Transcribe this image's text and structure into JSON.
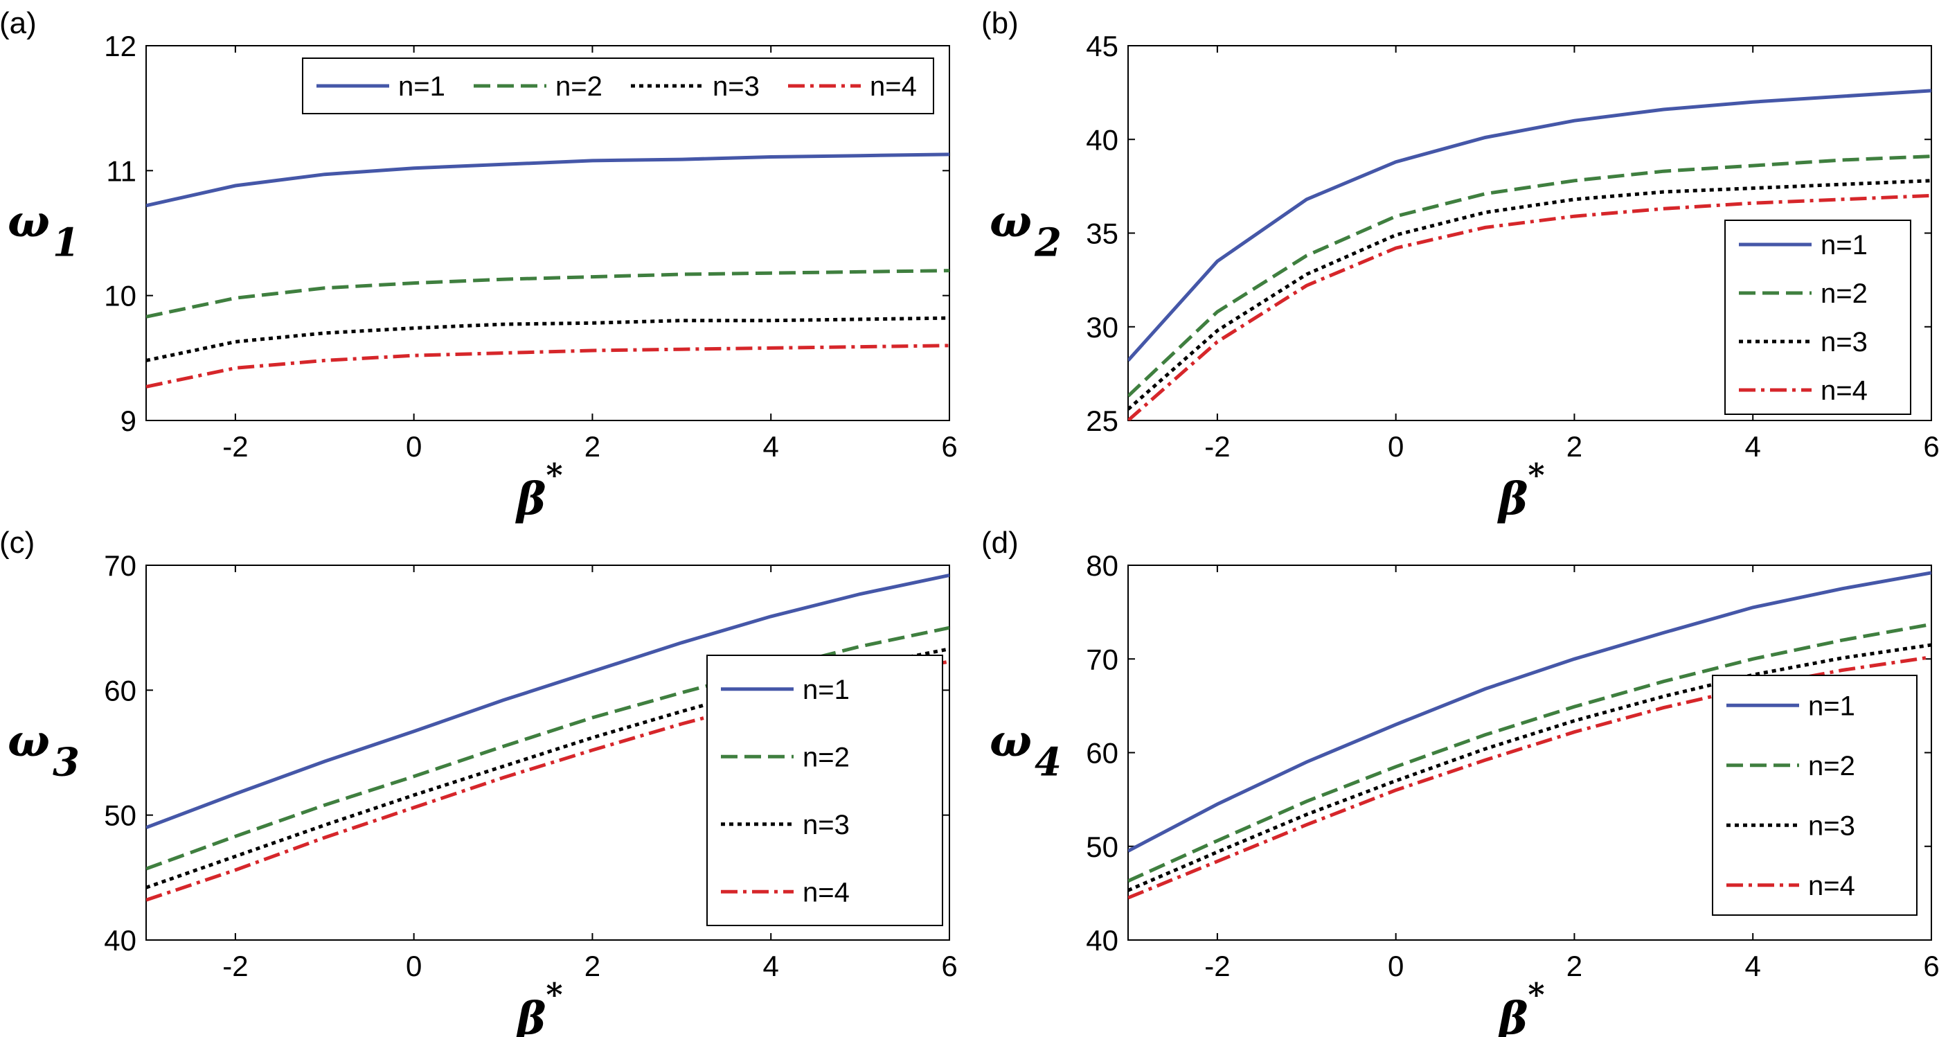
{
  "chart_data": [
    {
      "type": "line",
      "panel_label": "(a)",
      "xlabel": "β",
      "xlabel_sup": "*",
      "ylabel": "ω",
      "ylabel_sub": "1",
      "xlim": [
        -3,
        6
      ],
      "ylim": [
        9,
        12
      ],
      "xticks": [
        -2,
        0,
        2,
        4,
        6
      ],
      "yticks": [
        9,
        10,
        11,
        12
      ],
      "legend": "top-right-horizontal",
      "grid": false,
      "x": [
        -3,
        -2,
        -1,
        0,
        1,
        2,
        3,
        4,
        5,
        6
      ],
      "series": [
        {
          "name": "n=1",
          "values": [
            10.72,
            10.88,
            10.97,
            11.02,
            11.05,
            11.08,
            11.09,
            11.11,
            11.12,
            11.13
          ]
        },
        {
          "name": "n=2",
          "values": [
            9.83,
            9.98,
            10.06,
            10.1,
            10.13,
            10.15,
            10.17,
            10.18,
            10.19,
            10.2
          ]
        },
        {
          "name": "n=3",
          "values": [
            9.48,
            9.63,
            9.7,
            9.74,
            9.77,
            9.78,
            9.8,
            9.8,
            9.81,
            9.82
          ]
        },
        {
          "name": "n=4",
          "values": [
            9.27,
            9.42,
            9.48,
            9.52,
            9.54,
            9.56,
            9.57,
            9.58,
            9.59,
            9.6
          ]
        }
      ]
    },
    {
      "type": "line",
      "panel_label": "(b)",
      "xlabel": "β",
      "xlabel_sup": "*",
      "ylabel": "ω",
      "ylabel_sub": "2",
      "xlim": [
        -3,
        6
      ],
      "ylim": [
        25,
        45
      ],
      "xticks": [
        -2,
        0,
        2,
        4,
        6
      ],
      "yticks": [
        25,
        30,
        35,
        40,
        45
      ],
      "legend": "bottom-right",
      "grid": false,
      "x": [
        -3,
        -2,
        -1,
        0,
        1,
        2,
        3,
        4,
        5,
        6
      ],
      "series": [
        {
          "name": "n=1",
          "values": [
            28.2,
            33.5,
            36.8,
            38.8,
            40.1,
            41,
            41.6,
            42,
            42.3,
            42.6
          ]
        },
        {
          "name": "n=2",
          "values": [
            26.3,
            30.8,
            33.8,
            35.9,
            37.1,
            37.8,
            38.3,
            38.6,
            38.9,
            39.1
          ]
        },
        {
          "name": "n=3",
          "values": [
            25.6,
            29.8,
            32.8,
            34.9,
            36.1,
            36.8,
            37.2,
            37.4,
            37.6,
            37.8
          ]
        },
        {
          "name": "n=4",
          "values": [
            25,
            29.2,
            32.2,
            34.2,
            35.3,
            35.9,
            36.3,
            36.6,
            36.8,
            37
          ]
        }
      ]
    },
    {
      "type": "line",
      "panel_label": "(c)",
      "xlabel": "β",
      "xlabel_sup": "*",
      "ylabel": "ω",
      "ylabel_sub": "3",
      "xlim": [
        -3,
        6
      ],
      "ylim": [
        40,
        70
      ],
      "xticks": [
        -2,
        0,
        2,
        4,
        6
      ],
      "yticks": [
        40,
        50,
        60,
        70
      ],
      "legend": "bottom-right",
      "grid": false,
      "x": [
        -3,
        -2,
        -1,
        0,
        1,
        2,
        3,
        4,
        5,
        6
      ],
      "series": [
        {
          "name": "n=1",
          "values": [
            49,
            51.7,
            54.3,
            56.7,
            59.2,
            61.5,
            63.8,
            65.9,
            67.7,
            69.2
          ]
        },
        {
          "name": "n=2",
          "values": [
            45.7,
            48.3,
            50.8,
            53.1,
            55.5,
            57.8,
            59.8,
            61.7,
            63.5,
            65
          ]
        },
        {
          "name": "n=3",
          "values": [
            44.2,
            46.7,
            49.2,
            51.6,
            53.9,
            56.2,
            58.3,
            60.3,
            61.9,
            63.3
          ]
        },
        {
          "name": "n=4",
          "values": [
            43.2,
            45.6,
            48.2,
            50.6,
            53,
            55.2,
            57.3,
            59.2,
            60.9,
            62.3
          ]
        }
      ]
    },
    {
      "type": "line",
      "panel_label": "(d)",
      "xlabel": "β",
      "xlabel_sup": "*",
      "ylabel": "ω",
      "ylabel_sub": "4",
      "xlim": [
        -3,
        6
      ],
      "ylim": [
        40,
        80
      ],
      "xticks": [
        -2,
        0,
        2,
        4,
        6
      ],
      "yticks": [
        40,
        50,
        60,
        70,
        80
      ],
      "legend": "bottom-right",
      "grid": false,
      "x": [
        -3,
        -2,
        -1,
        0,
        1,
        2,
        3,
        4,
        5,
        6
      ],
      "series": [
        {
          "name": "n=1",
          "values": [
            49.5,
            54.5,
            59,
            63,
            66.8,
            70,
            72.8,
            75.5,
            77.5,
            79.2
          ]
        },
        {
          "name": "n=2",
          "values": [
            46.3,
            50.6,
            54.8,
            58.5,
            61.9,
            64.9,
            67.6,
            70,
            72,
            73.7
          ]
        },
        {
          "name": "n=3",
          "values": [
            45.3,
            49.4,
            53.4,
            57,
            60.4,
            63.4,
            66,
            68.3,
            70.1,
            71.5
          ]
        },
        {
          "name": "n=4",
          "values": [
            44.5,
            48.4,
            52.3,
            56,
            59.2,
            62.2,
            64.8,
            67,
            68.8,
            70.2
          ]
        }
      ]
    }
  ],
  "series_colors": [
    "#4557a8",
    "#3f7f3f",
    "#000000",
    "#d6262a"
  ],
  "series_styles": [
    "solid",
    "dashed",
    "dotted",
    "dash-dot"
  ]
}
